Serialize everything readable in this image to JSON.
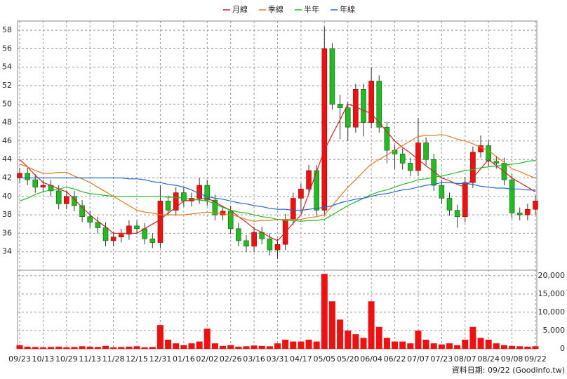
{
  "chart_data": {
    "type": "candlestick",
    "categories": [
      "09/23",
      null,
      null,
      "10/13",
      null,
      null,
      "10/29",
      null,
      null,
      "11/13",
      null,
      null,
      "11/28",
      null,
      null,
      "12/15",
      null,
      null,
      "12/31",
      null,
      null,
      "01/16",
      null,
      null,
      "02/02",
      null,
      null,
      "02/26",
      null,
      null,
      "03/16",
      null,
      null,
      "03/31",
      null,
      null,
      "04/17",
      null,
      null,
      "05/05",
      null,
      null,
      "05/20",
      null,
      null,
      "06/04",
      null,
      null,
      "06/22",
      null,
      null,
      "07/07",
      null,
      null,
      "07/23",
      null,
      null,
      "08/07",
      null,
      null,
      "08/24",
      null,
      null,
      "09/08",
      null,
      null,
      "09/22"
    ],
    "candles": {
      "up_color": "#ee1111",
      "down_color": "#22bb22",
      "open": [
        42.0,
        42.5,
        41.8,
        41.0,
        41.2,
        40.6,
        39.2,
        40.0,
        39.0,
        37.8,
        37.2,
        36.6,
        35.2,
        35.6,
        35.9,
        36.8,
        36.5,
        35.4,
        35.0,
        39.5,
        38.5,
        40.4,
        39.5,
        39.8,
        41.2,
        39.6,
        38.0,
        38.4,
        36.5,
        35.2,
        34.6,
        36.1,
        35.4,
        34.2,
        34.8,
        37.5,
        39.8,
        40.8,
        42.8,
        38.5,
        56.0,
        50.0,
        49.6,
        47.5,
        51.6,
        48.0,
        52.5,
        47.5,
        45.0,
        44.6,
        43.6,
        42.8,
        45.8,
        44.0,
        41.2,
        39.8,
        38.5,
        37.8,
        41.5,
        44.8,
        45.5,
        43.8,
        43.6,
        41.8,
        38.2,
        38.0,
        38.6
      ],
      "high": [
        43.1,
        43.1,
        42.4,
        41.8,
        41.8,
        41.2,
        40.6,
        40.6,
        39.6,
        38.4,
        37.8,
        37.2,
        36.2,
        36.5,
        37.4,
        37.4,
        37.1,
        36.0,
        41.2,
        40.1,
        41.0,
        41.0,
        40.4,
        42.0,
        41.8,
        40.2,
        39.0,
        39.0,
        37.1,
        35.8,
        36.7,
        36.7,
        36.0,
        35.4,
        38.1,
        40.4,
        41.4,
        43.4,
        43.4,
        58.4,
        56.6,
        51.0,
        50.2,
        52.2,
        52.2,
        54.0,
        53.1,
        48.1,
        45.6,
        45.2,
        44.2,
        48.5,
        46.4,
        44.6,
        41.8,
        40.4,
        39.1,
        42.1,
        45.4,
        46.6,
        46.1,
        44.4,
        44.2,
        42.4,
        38.8,
        39.2,
        40.1
      ],
      "low": [
        41.4,
        41.2,
        40.4,
        40.4,
        40.0,
        38.6,
        38.6,
        38.4,
        37.2,
        36.6,
        36.0,
        34.6,
        34.6,
        35.0,
        35.3,
        35.9,
        34.8,
        34.4,
        34.4,
        37.9,
        37.9,
        38.9,
        38.9,
        39.2,
        39.0,
        37.4,
        37.4,
        35.9,
        34.6,
        34.0,
        34.0,
        34.8,
        33.6,
        33.2,
        34.2,
        36.9,
        38.2,
        40.2,
        37.9,
        37.9,
        49.4,
        46.2,
        46.0,
        46.9,
        46.5,
        47.4,
        46.9,
        43.6,
        43.0,
        42.9,
        42.2,
        42.2,
        43.4,
        40.6,
        39.2,
        37.9,
        36.6,
        37.2,
        40.9,
        44.2,
        43.2,
        43.0,
        41.2,
        37.6,
        37.4,
        37.4,
        38.0
      ],
      "close": [
        42.5,
        41.8,
        41.0,
        41.2,
        40.6,
        39.2,
        40.0,
        39.0,
        37.8,
        37.2,
        36.6,
        35.2,
        35.6,
        35.9,
        36.8,
        36.5,
        35.4,
        35.0,
        39.5,
        38.5,
        40.4,
        39.5,
        39.8,
        41.2,
        39.6,
        38.0,
        38.4,
        36.5,
        35.2,
        34.6,
        36.1,
        35.4,
        34.2,
        34.8,
        37.5,
        39.8,
        40.8,
        42.8,
        38.5,
        56.0,
        50.0,
        49.6,
        47.5,
        51.6,
        48.0,
        52.5,
        47.5,
        45.0,
        44.6,
        43.6,
        42.8,
        45.8,
        44.0,
        41.2,
        39.8,
        38.5,
        37.8,
        41.5,
        44.8,
        45.5,
        43.8,
        43.6,
        41.8,
        38.2,
        38.0,
        38.6,
        39.5
      ]
    },
    "series": [
      {
        "name": "月線",
        "color": "#cc2222",
        "values": [
          44.0,
          43.2,
          42.3,
          41.5,
          41.2,
          40.8,
          40.5,
          39.7,
          38.8,
          38.0,
          37.3,
          36.7,
          36.0,
          36.0,
          36.0,
          36.0,
          36.5,
          37.0,
          37.5,
          38.2,
          38.8,
          39.5,
          39.6,
          39.7,
          39.8,
          39.4,
          38.9,
          38.5,
          37.8,
          37.2,
          36.5,
          36.1,
          35.6,
          35.2,
          36.1,
          37.1,
          38.0,
          40.3,
          42.7,
          45.0,
          46.7,
          48.3,
          50.0,
          49.7,
          49.3,
          49.0,
          48.0,
          47.0,
          46.0,
          45.3,
          44.7,
          44.0,
          43.3,
          42.7,
          42.0,
          41.7,
          41.3,
          41.0,
          42.0,
          43.0,
          44.0,
          43.3,
          42.7,
          42.0,
          41.5,
          41.0,
          40.5
        ]
      },
      {
        "name": "季線",
        "color": "#e07a20",
        "values": [
          43.5,
          43.2,
          42.8,
          42.5,
          42.5,
          42.6,
          42.6,
          42.2,
          41.9,
          41.5,
          41.0,
          40.5,
          40.0,
          39.5,
          39.0,
          38.5,
          38.3,
          38.2,
          38.0,
          38.0,
          38.0,
          38.0,
          38.1,
          38.2,
          38.3,
          38.2,
          38.1,
          38.0,
          37.8,
          37.5,
          37.3,
          37.4,
          37.4,
          37.5,
          37.5,
          37.5,
          37.5,
          37.7,
          37.8,
          38.0,
          39.0,
          40.0,
          41.0,
          41.8,
          42.7,
          43.5,
          44.0,
          44.5,
          45.0,
          45.5,
          46.0,
          46.5,
          46.6,
          46.6,
          46.7,
          46.5,
          46.2,
          46.0,
          45.7,
          45.3,
          45.0,
          44.3,
          43.7,
          43.0,
          42.7,
          42.3,
          42.0
        ]
      },
      {
        "name": "半年",
        "color": "#22bb22",
        "values": [
          39.5,
          39.8,
          40.2,
          40.5,
          40.7,
          40.8,
          41.0,
          40.8,
          40.5,
          40.3,
          40.2,
          40.1,
          40.0,
          40.0,
          40.0,
          40.0,
          40.0,
          40.0,
          40.0,
          39.9,
          39.9,
          39.8,
          39.7,
          39.6,
          39.5,
          39.2,
          38.8,
          38.5,
          38.3,
          38.2,
          38.0,
          37.8,
          37.7,
          37.5,
          37.4,
          37.4,
          37.3,
          37.4,
          37.4,
          37.5,
          38.0,
          38.5,
          39.0,
          39.4,
          39.8,
          40.2,
          40.5,
          40.7,
          41.0,
          41.3,
          41.5,
          41.8,
          41.9,
          42.1,
          42.2,
          42.4,
          42.6,
          42.8,
          42.9,
          43.1,
          43.2,
          43.3,
          43.4,
          43.5,
          43.6,
          43.8,
          43.9
        ]
      },
      {
        "name": "年線",
        "color": "#2266cc",
        "values": [
          42.0,
          42.0,
          42.0,
          42.0,
          42.0,
          42.0,
          42.0,
          42.0,
          42.0,
          42.0,
          42.0,
          42.0,
          42.0,
          42.0,
          41.9,
          41.9,
          41.8,
          41.6,
          41.5,
          41.3,
          41.2,
          41.0,
          40.7,
          40.3,
          40.0,
          39.8,
          39.7,
          39.5,
          39.3,
          39.2,
          39.0,
          38.9,
          38.7,
          38.6,
          38.6,
          38.5,
          38.5,
          38.6,
          38.7,
          38.8,
          39.0,
          39.3,
          39.5,
          39.7,
          39.8,
          40.0,
          40.2,
          40.3,
          40.5,
          40.7,
          40.8,
          41.0,
          41.2,
          41.3,
          41.5,
          41.5,
          41.4,
          41.4,
          41.3,
          41.1,
          41.0,
          40.9,
          40.9,
          40.8,
          40.8,
          40.7,
          40.7
        ]
      }
    ],
    "ylim": [
      32,
      59
    ],
    "yticks": [
      34,
      36,
      38,
      40,
      42,
      44,
      46,
      48,
      50,
      52,
      54,
      56,
      58
    ],
    "grid": true,
    "volume": {
      "color": "#ee1111",
      "values": [
        1000,
        600,
        500,
        400,
        500,
        600,
        400,
        500,
        700,
        600,
        500,
        800,
        400,
        500,
        600,
        700,
        400,
        500,
        6500,
        2500,
        1500,
        1000,
        1500,
        2000,
        5500,
        1500,
        800,
        1000,
        600,
        700,
        900,
        800,
        700,
        1500,
        2500,
        2000,
        2000,
        2500,
        2000,
        20500,
        13000,
        8000,
        5000,
        4000,
        3000,
        13000,
        6000,
        3000,
        2000,
        2000,
        1500,
        5000,
        2500,
        1500,
        1200,
        1500,
        1000,
        2500,
        6000,
        3000,
        2500,
        1500,
        1000,
        800,
        700,
        600,
        700
      ],
      "ylim": [
        0,
        21500
      ],
      "yticks": [
        0,
        {
          "value": 5000,
          "label": "5,000"
        },
        {
          "value": 10000,
          "label": "10,000"
        },
        {
          "value": 15000,
          "label": "15,000"
        },
        {
          "value": 20000,
          "label": "20,000"
        }
      ]
    },
    "footer": "資料日期: 09/22  (Goodinfo.tw)"
  }
}
